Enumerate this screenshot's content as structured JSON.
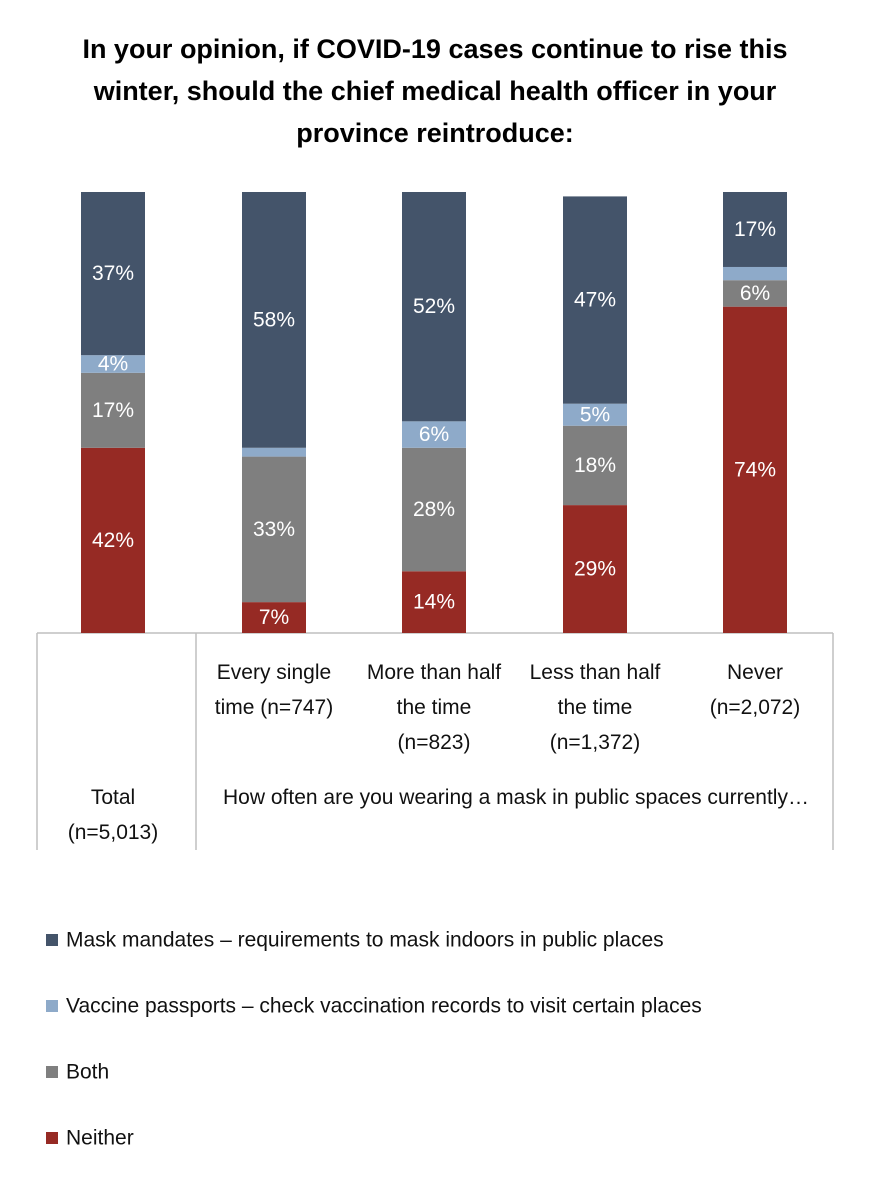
{
  "chart_data": {
    "type": "stacked_bar",
    "title": "In your opinion, if COVID-19 cases continue to rise this winter, should the chief medical health officer in your province reintroduce:",
    "categories": [
      "Total (n=5,013)",
      "Every single time (n=747)",
      "More than half the time (n=823)",
      "Less than half the time (n=1,372)",
      "Never (n=2,072)"
    ],
    "group_label": "How often are you wearing a mask in public spaces currently…",
    "ylim": [
      0,
      100
    ],
    "series": [
      {
        "name": "Mask mandates – requirements to mask indoors in public places",
        "color": "#44546a",
        "values": [
          37,
          58,
          52,
          47,
          17
        ],
        "value_labels": [
          "37%",
          "58%",
          "52%",
          "47%",
          "17%"
        ]
      },
      {
        "name": "Vaccine passports – check vaccination records to visit certain places",
        "color": "#8eaac9",
        "values": [
          4,
          2,
          6,
          5,
          3
        ],
        "value_labels": [
          "4%",
          null,
          "6%",
          "5%",
          null
        ]
      },
      {
        "name": "Both",
        "color": "#7f7f7f",
        "values": [
          17,
          33,
          28,
          18,
          6
        ],
        "value_labels": [
          "17%",
          "33%",
          "28%",
          "18%",
          "6%"
        ]
      },
      {
        "name": "Neither",
        "color": "#962a24",
        "values": [
          42,
          7,
          14,
          29,
          74
        ],
        "value_labels": [
          "42%",
          "7%",
          "14%",
          "29%",
          "74%"
        ]
      }
    ]
  }
}
